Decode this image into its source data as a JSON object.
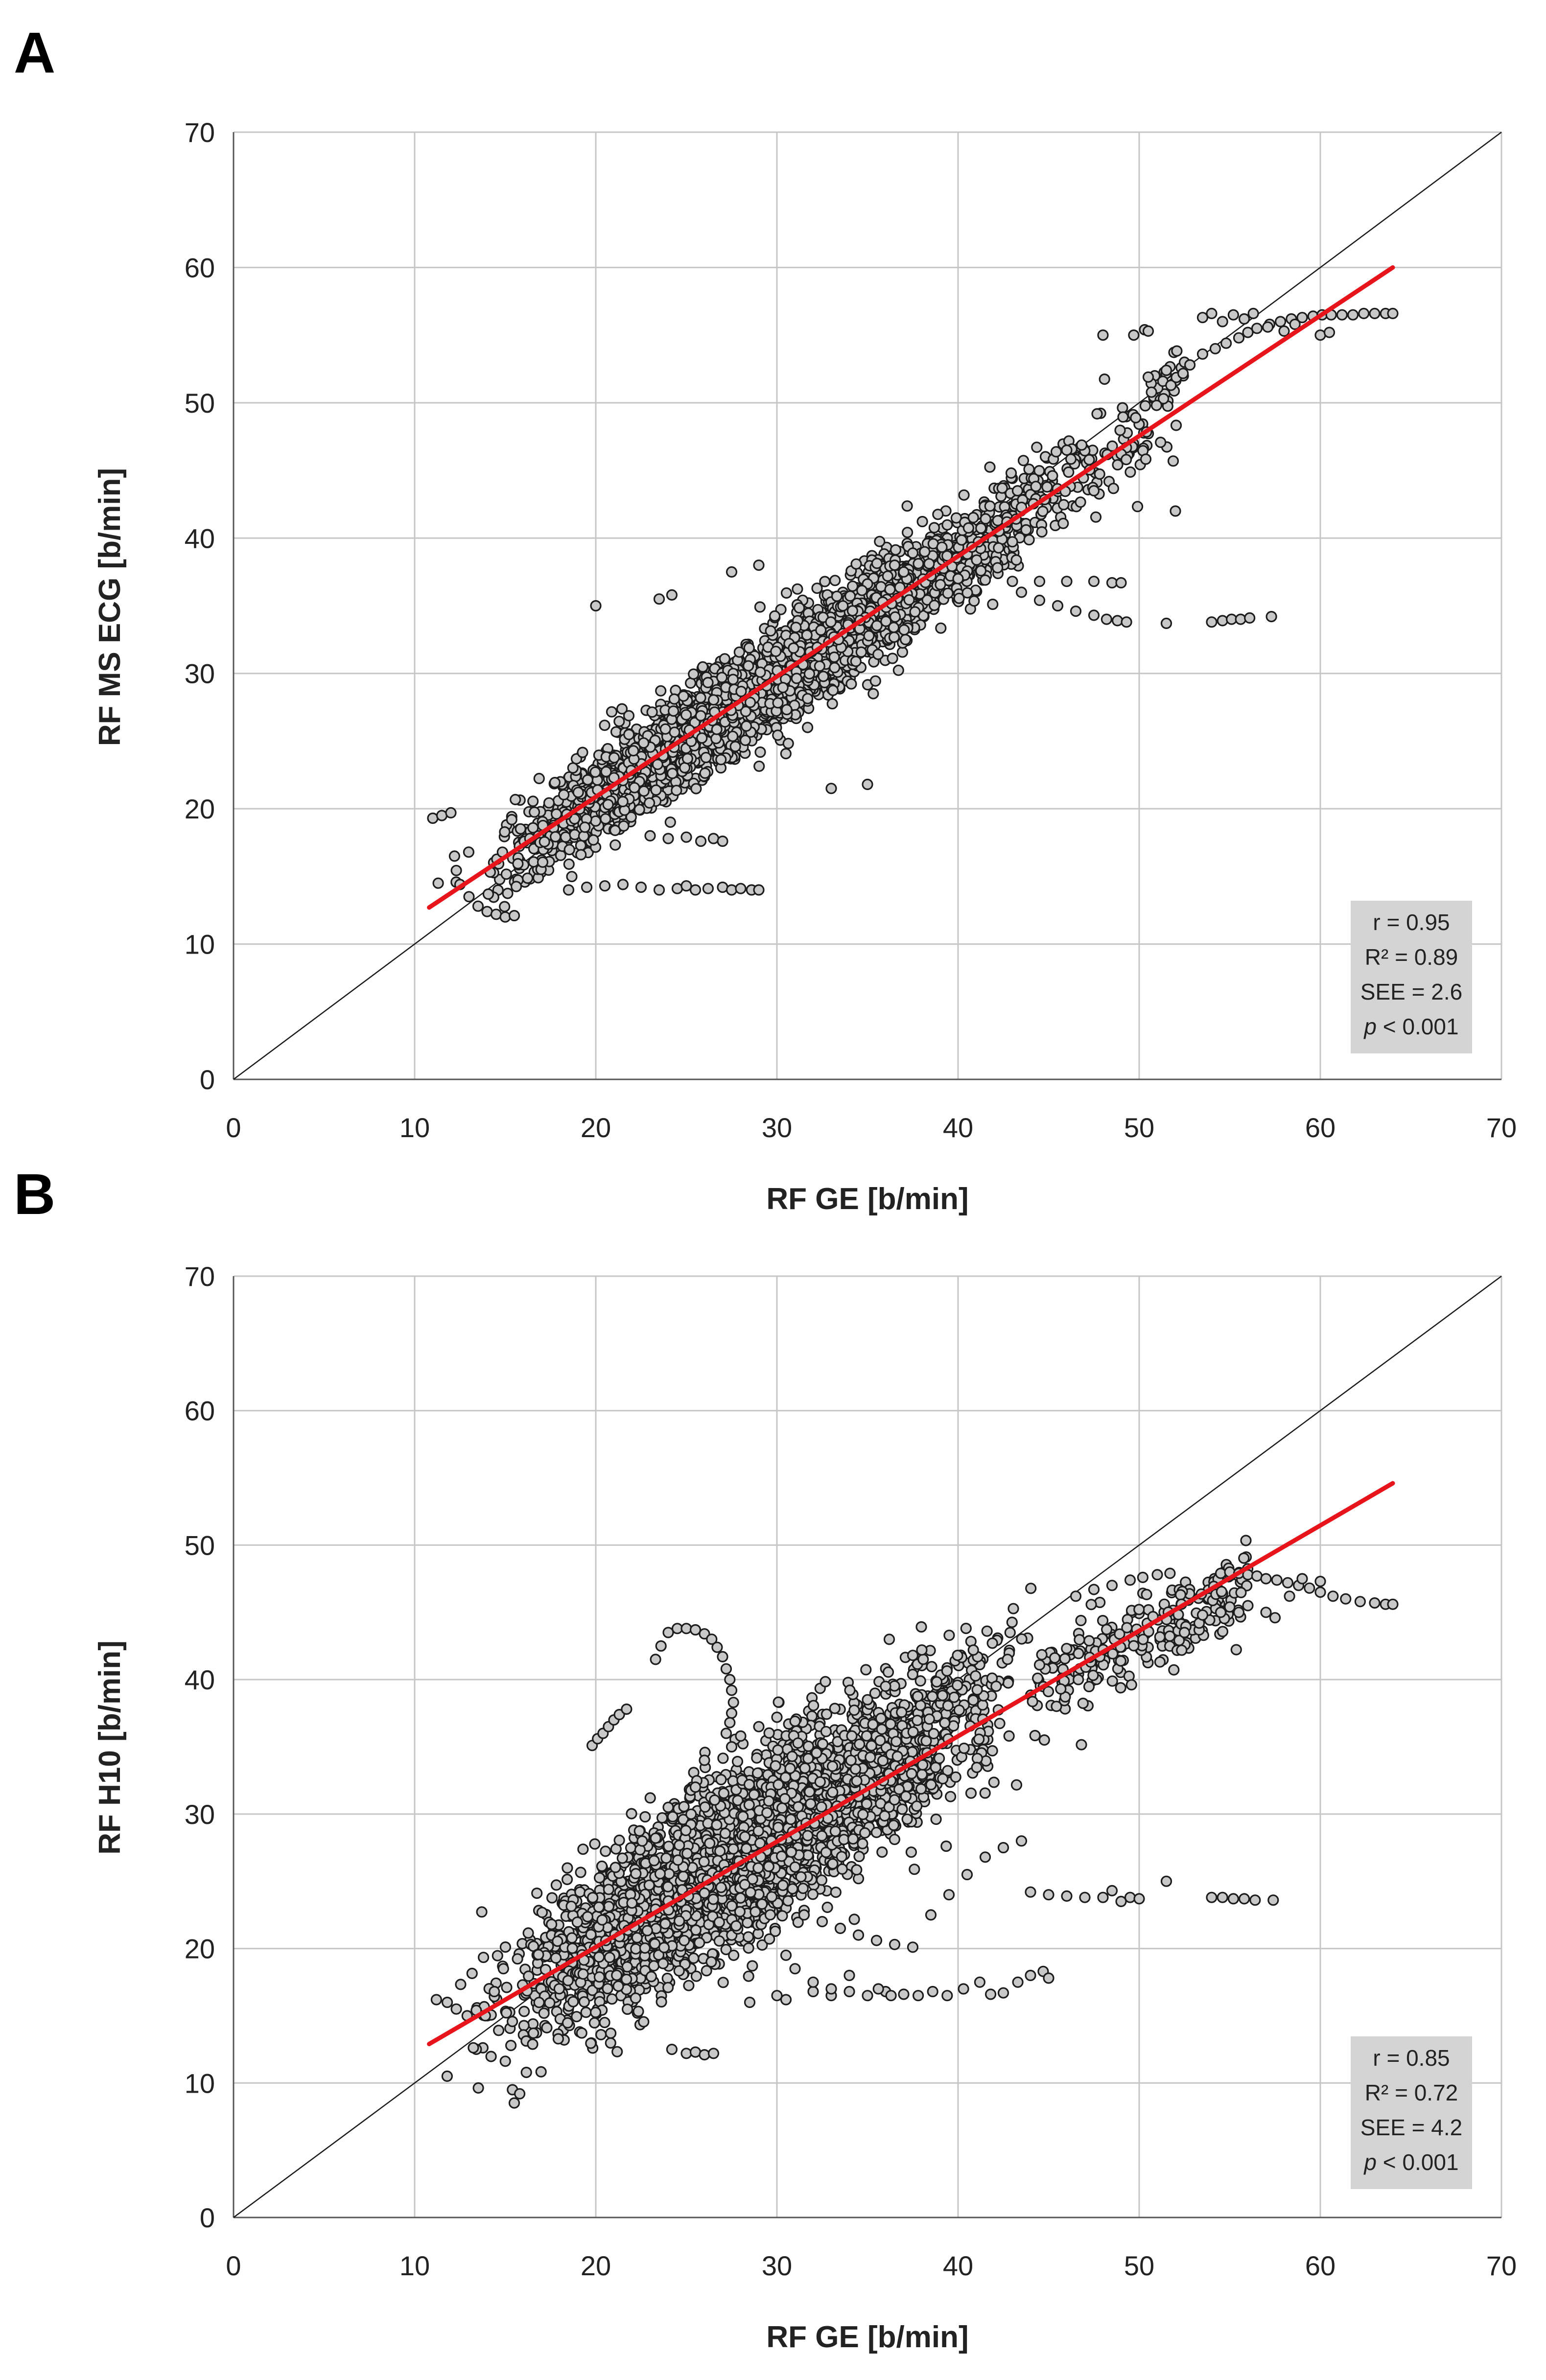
{
  "chart_data": [
    {
      "id": "A",
      "panel_label": "A",
      "type": "scatter",
      "xlabel": "RF GE [b/min]",
      "ylabel": "RF MS ECG [b/min]",
      "xlim": [
        0,
        70
      ],
      "ylim": [
        0,
        70
      ],
      "xticks": [
        0,
        10,
        20,
        30,
        40,
        50,
        60,
        70
      ],
      "yticks": [
        0,
        10,
        20,
        30,
        40,
        50,
        60,
        70
      ],
      "grid": true,
      "identity_line": true,
      "regression": {
        "x_start": 10.8,
        "y_start": 12.7,
        "x_end": 64.0,
        "y_end": 60.0,
        "color": "#e8141b"
      },
      "stats": {
        "r": "r = 0.95",
        "r2": "R² = 0.89",
        "see": "SEE = 2.6",
        "p_symbol": "p",
        "p_rest": " < 0.001"
      },
      "stats_placement": "bottom-right",
      "point_style": {
        "fill": "#c8c8c8",
        "stroke": "#1c1c1c"
      },
      "series": [
        {
          "name": "main",
          "kind": "cloud",
          "seed": 11,
          "n": 3600,
          "x_min": 11.0,
          "x_max": 47.5,
          "slope": 0.89,
          "intercept": 3.0,
          "spread": 1.75,
          "x_shape": "hump"
        },
        {
          "name": "upper",
          "kind": "cloud",
          "seed": 23,
          "n": 170,
          "x_min": 42.0,
          "x_max": 52.5,
          "slope": 0.92,
          "intercept": 2.0,
          "spread": 1.9,
          "x_shape": "uniform"
        },
        {
          "name": "curve-top",
          "kind": "points",
          "x": [
            52.5,
            53.5,
            54.2,
            54.8,
            55.5,
            56.0,
            56.5,
            57.2,
            57.8,
            58.4,
            59.0,
            59.6,
            60.1,
            60.6,
            61.2,
            61.8,
            62.4,
            63.0,
            63.6,
            64.0
          ],
          "y": [
            53.0,
            53.6,
            54.0,
            54.4,
            54.8,
            55.2,
            55.5,
            55.8,
            56.0,
            56.2,
            56.3,
            56.4,
            56.5,
            56.5,
            56.5,
            56.5,
            56.6,
            56.6,
            56.6,
            56.6
          ]
        },
        {
          "name": "cluster-56",
          "kind": "points",
          "x": [
            53.5,
            54.0,
            54.6,
            55.2,
            55.8,
            56.3,
            57.1,
            58.0,
            58.6,
            60.0,
            60.5,
            52.8,
            51.5,
            50.5,
            49.7,
            50.3
          ],
          "y": [
            56.3,
            56.6,
            56.0,
            56.5,
            56.2,
            56.6,
            55.6,
            55.3,
            55.8,
            55.0,
            55.2,
            52.8,
            52.4,
            51.9,
            55.0,
            55.4
          ]
        },
        {
          "name": "tail-34",
          "kind": "points",
          "x": [
            43.5,
            44.5,
            45.5,
            46.5,
            47.5,
            48.2,
            48.8,
            49.3,
            51.5,
            54.0,
            54.6,
            55.1,
            55.6,
            56.1,
            57.3
          ],
          "y": [
            36.0,
            35.4,
            35.0,
            34.6,
            34.3,
            34.0,
            33.9,
            33.8,
            33.7,
            33.8,
            33.9,
            34.0,
            34.0,
            34.1,
            34.2
          ]
        },
        {
          "name": "tail-36",
          "kind": "points",
          "x": [
            37.0,
            38.5,
            40.0,
            41.5,
            43.0,
            44.5,
            46.0,
            47.5,
            48.5,
            49.0
          ],
          "y": [
            37.5,
            37.2,
            37.0,
            36.9,
            36.8,
            36.8,
            36.8,
            36.8,
            36.7,
            36.7
          ]
        },
        {
          "name": "tail-14",
          "kind": "points",
          "x": [
            18.5,
            19.5,
            20.5,
            21.5,
            22.5,
            23.5,
            24.5,
            25.0,
            25.5,
            26.2,
            27.0,
            27.5,
            28.0,
            28.6,
            29.0
          ],
          "y": [
            14.0,
            14.2,
            14.3,
            14.4,
            14.2,
            14.0,
            14.1,
            14.3,
            14.0,
            14.1,
            14.2,
            14.0,
            14.1,
            14.0,
            14.0
          ]
        },
        {
          "name": "tail-18",
          "kind": "points",
          "x": [
            23.0,
            24.0,
            25.0,
            25.8,
            26.5,
            27.0
          ],
          "y": [
            18.0,
            17.8,
            17.9,
            17.6,
            17.8,
            17.6
          ]
        },
        {
          "name": "low-left",
          "kind": "points",
          "x": [
            11.0,
            11.5,
            12.0,
            12.5,
            13.0,
            13.5,
            14.0,
            14.5,
            15.0,
            15.5,
            11.3,
            12.2
          ],
          "y": [
            19.3,
            19.5,
            19.7,
            14.4,
            13.5,
            12.8,
            12.4,
            12.2,
            12.0,
            12.1,
            14.5,
            16.5
          ]
        },
        {
          "name": "outliers",
          "kind": "points",
          "x": [
            20.0,
            23.5,
            24.2,
            27.5,
            29.0,
            33.0,
            35.0,
            36.5,
            48.0,
            50.5,
            52.0,
            47.5,
            46.0
          ],
          "y": [
            35.0,
            35.5,
            35.8,
            37.5,
            38.0,
            21.5,
            21.8,
            38.0,
            55.0,
            55.3,
            42.0,
            43.5,
            46.5
          ]
        }
      ]
    },
    {
      "id": "B",
      "panel_label": "B",
      "type": "scatter",
      "xlabel": "RF GE [b/min]",
      "ylabel": "RF H10 [b/min]",
      "xlim": [
        0,
        70
      ],
      "ylim": [
        0,
        70
      ],
      "xticks": [
        0,
        10,
        20,
        30,
        40,
        50,
        60,
        70
      ],
      "yticks": [
        0,
        10,
        20,
        30,
        40,
        50,
        60,
        70
      ],
      "grid": true,
      "identity_line": true,
      "regression": {
        "x_start": 10.8,
        "y_start": 12.9,
        "x_end": 64.0,
        "y_end": 54.6,
        "color": "#e8141b"
      },
      "stats": {
        "r": "r = 0.85",
        "r2": "R² = 0.72",
        "see": "SEE = 4.2",
        "p_symbol": "p",
        "p_rest": " < 0.001"
      },
      "stats_placement": "bottom-right",
      "point_style": {
        "fill": "#c8c8c8",
        "stroke": "#1c1c1c"
      },
      "series": [
        {
          "name": "main",
          "kind": "cloud",
          "seed": 37,
          "n": 3600,
          "x_min": 11.0,
          "x_max": 46.0,
          "slope": 0.82,
          "intercept": 4.0,
          "spread": 3.1,
          "x_shape": "hump"
        },
        {
          "name": "upper",
          "kind": "cloud",
          "seed": 41,
          "n": 230,
          "x_min": 44.0,
          "x_max": 56.0,
          "slope": 0.62,
          "intercept": 12.0,
          "spread": 1.6,
          "x_shape": "uniform"
        },
        {
          "name": "curve-top",
          "kind": "points",
          "x": [
            46.5,
            47.5,
            48.5,
            49.5,
            50.2,
            51.0,
            51.7,
            54.5,
            55.0,
            55.5,
            56.0,
            56.5,
            57.0,
            57.6,
            58.2,
            58.8,
            59.4,
            60.0,
            60.7,
            61.4,
            62.2,
            63.0,
            63.6,
            64.0
          ],
          "y": [
            46.2,
            46.7,
            47.0,
            47.4,
            47.6,
            47.8,
            47.9,
            47.9,
            48.0,
            47.9,
            47.8,
            47.7,
            47.5,
            47.4,
            47.2,
            47.0,
            46.8,
            46.5,
            46.2,
            46.0,
            45.8,
            45.7,
            45.6,
            45.6
          ]
        },
        {
          "name": "band-45",
          "kind": "points",
          "x": [
            54.5,
            55.0,
            55.5,
            56.0,
            57.0,
            57.5,
            58.3,
            59.0,
            60.0,
            53.5,
            52.5
          ],
          "y": [
            45.0,
            45.4,
            45.0,
            45.5,
            45.0,
            44.6,
            46.2,
            47.5,
            47.3,
            44.8,
            43.5
          ]
        },
        {
          "name": "tail-24",
          "kind": "points",
          "x": [
            44.0,
            45.0,
            46.0,
            47.0,
            48.0,
            48.5,
            49.0,
            49.5,
            50.0,
            51.5,
            54.0,
            54.6,
            55.2,
            55.8,
            56.4,
            57.4
          ],
          "y": [
            24.2,
            24.0,
            23.9,
            23.8,
            23.8,
            24.3,
            23.5,
            23.8,
            23.7,
            25.0,
            23.8,
            23.8,
            23.7,
            23.7,
            23.6,
            23.6
          ]
        },
        {
          "name": "tail-17",
          "kind": "points",
          "x": [
            32.0,
            33.0,
            34.0,
            35.0,
            36.0,
            37.0,
            37.8,
            38.6,
            39.4,
            40.3,
            41.2,
            41.8,
            42.5,
            43.3,
            44.0,
            44.7,
            45.0,
            35.6,
            36.3
          ],
          "y": [
            16.8,
            16.5,
            16.8,
            16.5,
            16.8,
            16.6,
            16.5,
            16.8,
            16.5,
            17.0,
            17.5,
            16.6,
            16.7,
            17.5,
            18.0,
            18.3,
            17.8,
            17.0,
            16.5
          ]
        },
        {
          "name": "tail-mid",
          "kind": "points",
          "x": [
            31.5,
            32.5,
            33.5,
            34.5,
            35.5,
            36.5,
            37.5,
            38.5,
            39.5,
            40.5,
            41.5,
            42.5,
            43.5,
            30.5,
            31.0,
            32.0,
            33.0,
            34.0
          ],
          "y": [
            22.5,
            22.0,
            21.5,
            21.0,
            20.6,
            20.3,
            20.1,
            22.5,
            24.0,
            25.5,
            26.8,
            27.5,
            28.0,
            19.5,
            18.5,
            17.5,
            17.0,
            18.0
          ]
        },
        {
          "name": "hook",
          "kind": "points",
          "x": [
            24.0,
            24.5,
            25.0,
            25.5,
            26.0,
            26.4,
            26.7,
            27.0,
            27.2,
            27.4,
            27.5,
            27.6,
            27.5,
            27.4,
            27.2,
            23.6,
            23.3
          ],
          "y": [
            43.5,
            43.8,
            43.8,
            43.7,
            43.4,
            43.0,
            42.4,
            41.7,
            40.8,
            40.0,
            39.2,
            38.3,
            37.5,
            36.8,
            36.0,
            42.5,
            41.5
          ]
        },
        {
          "name": "spike-20",
          "kind": "points",
          "x": [
            19.8,
            20.1,
            20.4,
            20.7,
            21.0,
            21.3,
            21.7
          ],
          "y": [
            35.1,
            35.6,
            36.0,
            36.5,
            37.0,
            37.4,
            37.8
          ]
        },
        {
          "name": "low-outliers",
          "kind": "points",
          "x": [
            25.0,
            25.5,
            26.0,
            26.5,
            24.2,
            28.5,
            30.0,
            30.5
          ],
          "y": [
            12.2,
            12.3,
            12.1,
            12.2,
            12.5,
            16.0,
            16.5,
            16.2
          ]
        },
        {
          "name": "mid-outliers",
          "kind": "points",
          "x": [
            24.0,
            25.5,
            26.0,
            27.5,
            28.0,
            29.0,
            30.0,
            31.0,
            35.0,
            36.0,
            37.5,
            38.0
          ],
          "y": [
            30.5,
            32.0,
            34.0,
            35.0,
            35.8,
            36.5,
            37.2,
            36.9,
            38.5,
            39.5,
            41.8,
            42.2
          ]
        },
        {
          "name": "far-left",
          "kind": "points",
          "x": [
            11.2,
            11.8,
            12.3,
            12.9,
            13.4,
            13.9,
            14.4,
            14.9,
            15.4,
            15.8
          ],
          "y": [
            16.2,
            16.0,
            15.5,
            15.0,
            15.4,
            15.0,
            16.8,
            18.5,
            9.5,
            9.2
          ]
        }
      ]
    }
  ]
}
